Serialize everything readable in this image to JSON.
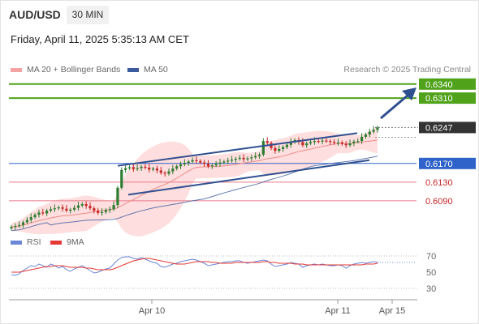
{
  "header": {
    "symbol": "AUD/USD",
    "timeframe": "30 MIN",
    "datetime": "Friday, April 11, 2025 5:35:13 AM CET"
  },
  "legend": {
    "ma20_label": "MA 20 + Bollinger Bands",
    "ma50_label": "MA 50",
    "credit": "Research © 2025 Trading Central",
    "rsi_label": "RSI",
    "rsi_ma_label": "9MA"
  },
  "colors": {
    "bullish": "#2e7d32",
    "bearish": "#c62828",
    "ma20": "#f08a8a",
    "bollinger_fill": "#fdd3d3",
    "ma50": "#3c5b9e",
    "channel": "#2f4f8f",
    "resistance": "#4fa21a",
    "support_blue": "#2f63c9",
    "support_red": "#e87a8a",
    "price_tag": "#333333",
    "rsi": "#6a86d6",
    "rsi_ma": "#e53935"
  },
  "chart_data": [
    {
      "type": "candlestick",
      "ylim": [
        0.6017,
        0.6357
      ],
      "x_ticks": [
        "Apr 10",
        "Apr 11",
        "Apr 15"
      ],
      "close_series": [
        0.6034,
        0.6036,
        0.6038,
        0.6044,
        0.6049,
        0.6055,
        0.606,
        0.6065,
        0.6063,
        0.6069,
        0.6072,
        0.6074,
        0.6076,
        0.6073,
        0.6069,
        0.6071,
        0.6075,
        0.608,
        0.6083,
        0.6079,
        0.6074,
        0.6069,
        0.6064,
        0.6066,
        0.607,
        0.6072,
        0.6081,
        0.6118,
        0.6156,
        0.616,
        0.6162,
        0.6158,
        0.616,
        0.6163,
        0.6161,
        0.6157,
        0.6159,
        0.6155,
        0.615,
        0.6148,
        0.6153,
        0.6159,
        0.6164,
        0.6168,
        0.6171,
        0.6174,
        0.6177,
        0.6175,
        0.6172,
        0.6169,
        0.6164,
        0.6166,
        0.6169,
        0.6172,
        0.6174,
        0.6176,
        0.6178,
        0.618,
        0.6182,
        0.6179,
        0.6181,
        0.6183,
        0.6186,
        0.6189,
        0.6218,
        0.6214,
        0.6203,
        0.6197,
        0.6201,
        0.6205,
        0.621,
        0.6216,
        0.622,
        0.6216,
        0.6209,
        0.6213,
        0.6216,
        0.6218,
        0.6217,
        0.6219,
        0.6218,
        0.6216,
        0.6214,
        0.6215,
        0.6212,
        0.6209,
        0.6213,
        0.6217,
        0.6218,
        0.6227,
        0.6232,
        0.6238,
        0.6242,
        0.6247
      ],
      "lines": [
        {
          "label": "0.6340",
          "value": 0.634,
          "kind": "resistance"
        },
        {
          "label": "0.6310",
          "value": 0.631,
          "kind": "resistance"
        },
        {
          "label": "0.6247",
          "value": 0.6247,
          "kind": "last_price"
        },
        {
          "label": "0.6170",
          "value": 0.617,
          "kind": "pivot"
        },
        {
          "label": "0.6130",
          "value": 0.613,
          "kind": "support"
        },
        {
          "label": "0.6090",
          "value": 0.609,
          "kind": "support"
        }
      ]
    },
    {
      "type": "line",
      "title": "RSI",
      "ylim": [
        20,
        80
      ],
      "y_ticks": [
        70,
        50,
        30
      ],
      "rsi": [
        47,
        46,
        48,
        52,
        55,
        58,
        57,
        60,
        58,
        56,
        60,
        58,
        55,
        57,
        53,
        51,
        54,
        56,
        58,
        55,
        52,
        49,
        50,
        52,
        54,
        55,
        60,
        65,
        68,
        69,
        69,
        67,
        66,
        68,
        66,
        64,
        62,
        61,
        57,
        56,
        58,
        60,
        61,
        63,
        64,
        65,
        66,
        65,
        63,
        61,
        58,
        59,
        60,
        61,
        62,
        63,
        63,
        64,
        64,
        62,
        61,
        62,
        63,
        64,
        65,
        64,
        60,
        57,
        58,
        59,
        60,
        62,
        61,
        60,
        56,
        58,
        59,
        60,
        59,
        60,
        59,
        58,
        58,
        59,
        58,
        55,
        58,
        60,
        61,
        62,
        61,
        62,
        63,
        62
      ],
      "rsi_ma": [
        50,
        50,
        50,
        51,
        52,
        53,
        54,
        55,
        56,
        57,
        57,
        58,
        58,
        58,
        57,
        56,
        56,
        56,
        56,
        55,
        55,
        54,
        53,
        53,
        53,
        53,
        54,
        56,
        58,
        60,
        62,
        64,
        65,
        66,
        67,
        67,
        66,
        65,
        64,
        63,
        62,
        61,
        60,
        60,
        60,
        61,
        62,
        63,
        63,
        63,
        63,
        62,
        62,
        61,
        61,
        61,
        61,
        62,
        62,
        62,
        62,
        62,
        62,
        62,
        63,
        63,
        62,
        62,
        61,
        61,
        61,
        61,
        60,
        60,
        60,
        59,
        59,
        59,
        59,
        59,
        59,
        59,
        59,
        59,
        59,
        59,
        59,
        59,
        59,
        59,
        60,
        60,
        60,
        61
      ]
    }
  ]
}
